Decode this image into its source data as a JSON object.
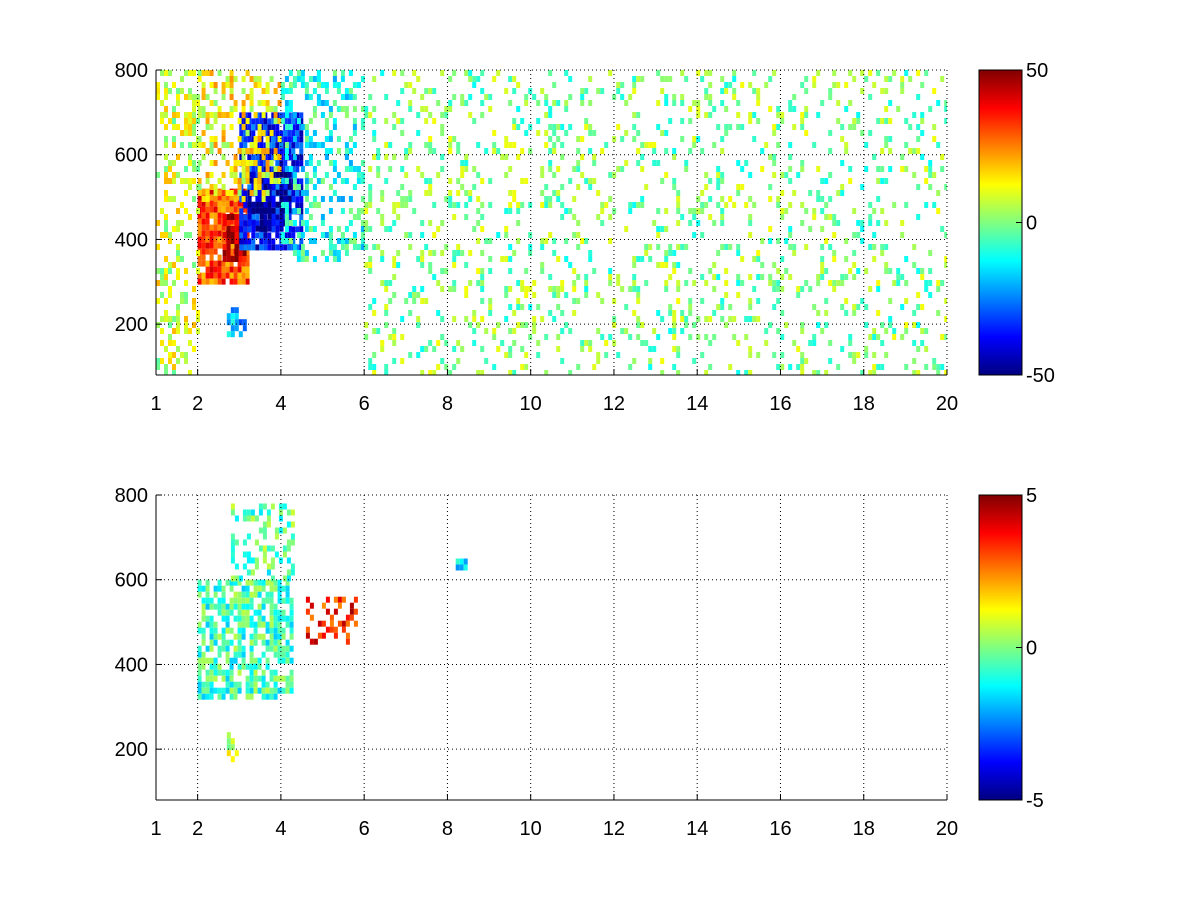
{
  "chart_data": [
    {
      "type": "heatmap",
      "title": "",
      "xlabel": "",
      "ylabel": "",
      "xlim": [
        1,
        20
      ],
      "ylim": [
        80,
        800
      ],
      "x_ticks": [
        "1",
        "2",
        "4",
        "6",
        "8",
        "10",
        "12",
        "14",
        "16",
        "18",
        "20"
      ],
      "x_tick_values": [
        1,
        2,
        4,
        6,
        8,
        10,
        12,
        14,
        16,
        18,
        20
      ],
      "y_ticks": [
        "200",
        "400",
        "600",
        "800"
      ],
      "y_tick_values": [
        200,
        400,
        600,
        800
      ],
      "grid": true,
      "colormap": "jet",
      "colorbar": {
        "min": -50,
        "max": 50,
        "ticks": [
          "50",
          "0",
          "-50"
        ],
        "tick_values": [
          50,
          0,
          -50
        ]
      },
      "regions": [
        {
          "x_range": [
            2.0,
            3.2
          ],
          "y_range": [
            300,
            520
          ],
          "value": 30,
          "density": 0.9
        },
        {
          "x_range": [
            2.6,
            3.1
          ],
          "y_range": [
            360,
            460
          ],
          "value": 45,
          "density": 0.9
        },
        {
          "x_range": [
            3.0,
            4.5
          ],
          "y_range": [
            380,
            700
          ],
          "value": -35,
          "density": 0.85
        },
        {
          "x_range": [
            3.2,
            4.2
          ],
          "y_range": [
            420,
            560
          ],
          "value": -45,
          "density": 0.8
        },
        {
          "x_range": [
            1.0,
            2.0
          ],
          "y_range": [
            80,
            800
          ],
          "value": 8,
          "density": 0.35
        },
        {
          "x_range": [
            2.0,
            4.0
          ],
          "y_range": [
            500,
            800
          ],
          "value": 12,
          "density": 0.45
        },
        {
          "x_range": [
            4.0,
            6.0
          ],
          "y_range": [
            350,
            800
          ],
          "value": -10,
          "density": 0.35
        },
        {
          "x_range": [
            2.7,
            3.1
          ],
          "y_range": [
            170,
            240
          ],
          "value": -20,
          "density": 0.7
        },
        {
          "x_range": [
            6.0,
            20.0
          ],
          "y_range": [
            80,
            800
          ],
          "value": 0,
          "density": 0.18
        }
      ]
    },
    {
      "type": "heatmap",
      "title": "",
      "xlabel": "",
      "ylabel": "",
      "xlim": [
        1,
        20
      ],
      "ylim": [
        80,
        800
      ],
      "x_ticks": [
        "1",
        "2",
        "4",
        "6",
        "8",
        "10",
        "12",
        "14",
        "16",
        "18",
        "20"
      ],
      "x_tick_values": [
        1,
        2,
        4,
        6,
        8,
        10,
        12,
        14,
        16,
        18,
        20
      ],
      "y_ticks": [
        "200",
        "400",
        "600",
        "800"
      ],
      "y_tick_values": [
        200,
        400,
        600,
        800
      ],
      "grid": true,
      "colormap": "jet",
      "colorbar": {
        "min": -5,
        "max": 5,
        "ticks": [
          "5",
          "0",
          "-5"
        ],
        "tick_values": [
          5,
          0,
          -5
        ]
      },
      "regions": [
        {
          "x_range": [
            2.0,
            4.3
          ],
          "y_range": [
            320,
            600
          ],
          "value": -0.6,
          "density": 0.7
        },
        {
          "x_range": [
            2.8,
            4.3
          ],
          "y_range": [
            600,
            780
          ],
          "value": -0.4,
          "density": 0.35
        },
        {
          "x_range": [
            4.6,
            5.8
          ],
          "y_range": [
            460,
            560
          ],
          "value": 3.5,
          "density": 0.35
        },
        {
          "x_range": [
            2.7,
            2.95
          ],
          "y_range": [
            180,
            240
          ],
          "value": 0.5,
          "density": 0.6
        },
        {
          "x_range": [
            8.2,
            8.4
          ],
          "y_range": [
            630,
            650
          ],
          "value": -1.5,
          "density": 0.9
        }
      ]
    }
  ]
}
